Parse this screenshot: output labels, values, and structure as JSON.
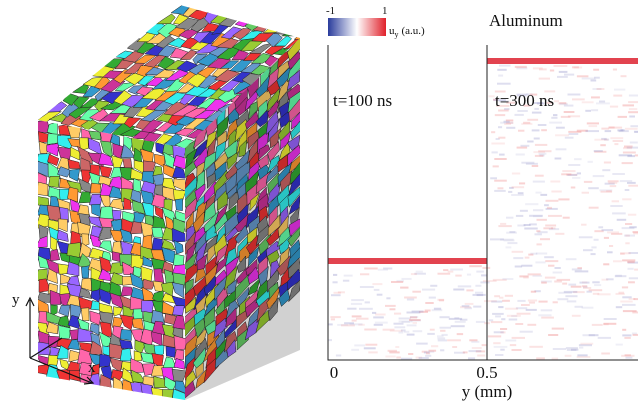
{
  "cube": {
    "axis_y": "y",
    "axis_x": "x"
  },
  "colorbar": {
    "min_label": "-1",
    "max_label": "1",
    "quantity": "u",
    "quantity_sub": "y",
    "unit": "(a.u.)"
  },
  "panel": {
    "material": "Aluminum",
    "left_time": "t=100 ns",
    "right_time": "t=300 ns",
    "x_tick_0": "0",
    "x_tick_1": "0.5",
    "x_label": "y (mm)"
  }
}
